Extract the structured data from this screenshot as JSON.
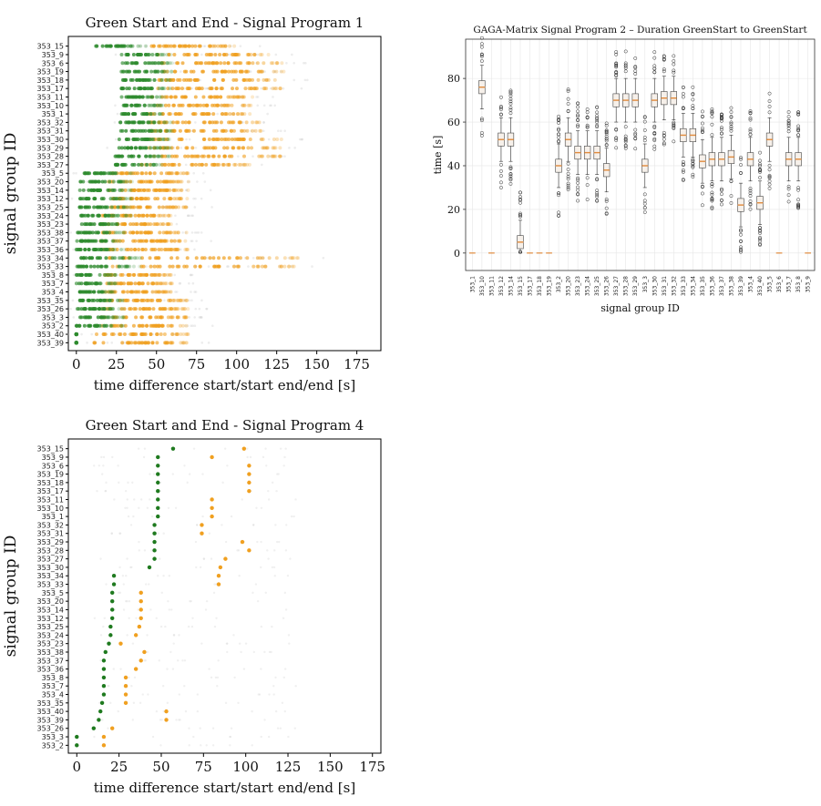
{
  "chart_data": [
    {
      "type": "scatter",
      "title": "Green Start and End - Signal Program 1",
      "xlabel": "time difference start/start end/end [s]",
      "ylabel": "signal group ID",
      "xlim": [
        -5,
        190
      ],
      "xticks": [
        0,
        25,
        50,
        75,
        100,
        125,
        150,
        175
      ],
      "colors": {
        "start": "#2e8b2e",
        "end": "#f0a020"
      },
      "rows": [
        {
          "id": "353_15",
          "start": [
            12,
            45
          ],
          "end": [
            40,
            100
          ]
        },
        {
          "id": "353_9",
          "start": [
            28,
            60
          ],
          "end": [
            50,
            120
          ]
        },
        {
          "id": "353_6",
          "start": [
            28,
            60
          ],
          "end": [
            50,
            130
          ]
        },
        {
          "id": "353_19",
          "start": [
            28,
            60
          ],
          "end": [
            50,
            130
          ]
        },
        {
          "id": "353_18",
          "start": [
            28,
            60
          ],
          "end": [
            50,
            130
          ]
        },
        {
          "id": "353_17",
          "start": [
            28,
            60
          ],
          "end": [
            50,
            130
          ]
        },
        {
          "id": "353_11",
          "start": [
            28,
            55
          ],
          "end": [
            45,
            110
          ]
        },
        {
          "id": "353_10",
          "start": [
            28,
            55
          ],
          "end": [
            45,
            110
          ]
        },
        {
          "id": "353_1",
          "start": [
            28,
            55
          ],
          "end": [
            45,
            110
          ]
        },
        {
          "id": "353_32",
          "start": [
            26,
            60
          ],
          "end": [
            45,
            120
          ]
        },
        {
          "id": "353_31",
          "start": [
            26,
            60
          ],
          "end": [
            45,
            120
          ]
        },
        {
          "id": "353_30",
          "start": [
            24,
            60
          ],
          "end": [
            45,
            130
          ]
        },
        {
          "id": "353_29",
          "start": [
            24,
            60
          ],
          "end": [
            45,
            130
          ]
        },
        {
          "id": "353_28",
          "start": [
            24,
            60
          ],
          "end": [
            45,
            130
          ]
        },
        {
          "id": "353_27",
          "start": [
            24,
            55
          ],
          "end": [
            40,
            110
          ]
        },
        {
          "id": "353_5",
          "start": [
            2,
            35
          ],
          "end": [
            20,
            70
          ]
        },
        {
          "id": "353_20",
          "start": [
            2,
            35
          ],
          "end": [
            20,
            70
          ]
        },
        {
          "id": "353_14",
          "start": [
            2,
            35
          ],
          "end": [
            20,
            70
          ]
        },
        {
          "id": "353_12",
          "start": [
            2,
            35
          ],
          "end": [
            20,
            70
          ]
        },
        {
          "id": "353_25",
          "start": [
            2,
            35
          ],
          "end": [
            20,
            70
          ]
        },
        {
          "id": "353_24",
          "start": [
            2,
            35
          ],
          "end": [
            15,
            60
          ]
        },
        {
          "id": "353_23",
          "start": [
            2,
            30
          ],
          "end": [
            15,
            60
          ]
        },
        {
          "id": "353_38",
          "start": [
            0,
            30
          ],
          "end": [
            15,
            70
          ]
        },
        {
          "id": "353_37",
          "start": [
            0,
            30
          ],
          "end": [
            15,
            70
          ]
        },
        {
          "id": "353_36",
          "start": [
            0,
            30
          ],
          "end": [
            15,
            70
          ]
        },
        {
          "id": "353_34",
          "start": [
            0,
            40
          ],
          "end": [
            20,
            140
          ]
        },
        {
          "id": "353_33",
          "start": [
            0,
            40
          ],
          "end": [
            20,
            140
          ]
        },
        {
          "id": "353_8",
          "start": [
            0,
            25
          ],
          "end": [
            15,
            60
          ]
        },
        {
          "id": "353_7",
          "start": [
            0,
            25
          ],
          "end": [
            15,
            60
          ]
        },
        {
          "id": "353_4",
          "start": [
            0,
            25
          ],
          "end": [
            15,
            60
          ]
        },
        {
          "id": "353_35",
          "start": [
            0,
            30
          ],
          "end": [
            15,
            70
          ]
        },
        {
          "id": "353_26",
          "start": [
            0,
            30
          ],
          "end": [
            15,
            70
          ]
        },
        {
          "id": "353_3",
          "start": [
            0,
            30
          ],
          "end": [
            15,
            70
          ]
        },
        {
          "id": "353_2",
          "start": [
            0,
            30
          ],
          "end": [
            15,
            70
          ]
        },
        {
          "id": "353_40",
          "start": [
            0,
            0
          ],
          "end": [
            10,
            70
          ]
        },
        {
          "id": "353_39",
          "start": [
            0,
            0
          ],
          "end": [
            10,
            70
          ]
        }
      ]
    },
    {
      "type": "box",
      "title": "GAGA-Matrix Signal Program 2 – Duration GreenStart to GreenStart",
      "xlabel": "signal group ID",
      "ylabel": "time [s]",
      "ylim": [
        -8,
        98
      ],
      "yticks": [
        0,
        20,
        40,
        60,
        80
      ],
      "box_color": "#e08a3c",
      "categories": [
        "353_1",
        "353_10",
        "353_11",
        "353_12",
        "353_14",
        "353_15",
        "353_17",
        "353_18",
        "353_19",
        "353_2",
        "353_20",
        "353_23",
        "353_24",
        "353_25",
        "353_26",
        "353_27",
        "353_28",
        "353_29",
        "353_3",
        "353_30",
        "353_31",
        "353_32",
        "353_33",
        "353_34",
        "353_35",
        "353_36",
        "353_37",
        "353_38",
        "353_39",
        "353_4",
        "353_40",
        "353_5",
        "353_6",
        "353_7",
        "353_8",
        "353_9"
      ],
      "medians": [
        0,
        76,
        0,
        52,
        52,
        5,
        0,
        0,
        0,
        40,
        52,
        46,
        46,
        46,
        38,
        70,
        70,
        70,
        40,
        70,
        71,
        71,
        54,
        54,
        42,
        43,
        43,
        44,
        22,
        43,
        23,
        52,
        0,
        43,
        43,
        0
      ]
    },
    {
      "type": "scatter",
      "title": "Green Start and End - Signal Program 4",
      "xlabel": "time difference start/start end/end [s]",
      "ylabel": "signal group ID",
      "xlim": [
        -5,
        180
      ],
      "xticks": [
        0,
        25,
        50,
        75,
        100,
        125,
        150,
        175
      ],
      "colors": {
        "start": "#1f7a1f",
        "end": "#f0a020"
      },
      "rows": [
        {
          "id": "353_15",
          "start": 57,
          "end": 99
        },
        {
          "id": "353_9",
          "start": 48,
          "end": 80
        },
        {
          "id": "353_6",
          "start": 48,
          "end": 102
        },
        {
          "id": "353_19",
          "start": 48,
          "end": 102
        },
        {
          "id": "353_18",
          "start": 48,
          "end": 102
        },
        {
          "id": "353_17",
          "start": 48,
          "end": 102
        },
        {
          "id": "353_11",
          "start": 48,
          "end": 80
        },
        {
          "id": "353_10",
          "start": 48,
          "end": 80
        },
        {
          "id": "353_1",
          "start": 48,
          "end": 80
        },
        {
          "id": "353_32",
          "start": 46,
          "end": 74
        },
        {
          "id": "353_31",
          "start": 46,
          "end": 74
        },
        {
          "id": "353_29",
          "start": 46,
          "end": 98
        },
        {
          "id": "353_28",
          "start": 46,
          "end": 102
        },
        {
          "id": "353_27",
          "start": 46,
          "end": 88
        },
        {
          "id": "353_30",
          "start": 43,
          "end": 85
        },
        {
          "id": "353_34",
          "start": 22,
          "end": 84
        },
        {
          "id": "353_33",
          "start": 22,
          "end": 84
        },
        {
          "id": "353_5",
          "start": 21,
          "end": 38
        },
        {
          "id": "353_20",
          "start": 21,
          "end": 38
        },
        {
          "id": "353_14",
          "start": 21,
          "end": 38
        },
        {
          "id": "353_12",
          "start": 21,
          "end": 38
        },
        {
          "id": "353_25",
          "start": 20,
          "end": 37
        },
        {
          "id": "353_24",
          "start": 20,
          "end": 35
        },
        {
          "id": "353_23",
          "start": 19,
          "end": 26
        },
        {
          "id": "353_38",
          "start": 17,
          "end": 40
        },
        {
          "id": "353_37",
          "start": 16,
          "end": 38
        },
        {
          "id": "353_36",
          "start": 16,
          "end": 35
        },
        {
          "id": "353_8",
          "start": 16,
          "end": 29
        },
        {
          "id": "353_7",
          "start": 16,
          "end": 29
        },
        {
          "id": "353_4",
          "start": 16,
          "end": 29
        },
        {
          "id": "353_35",
          "start": 15,
          "end": 29
        },
        {
          "id": "353_40",
          "start": 14,
          "end": 53
        },
        {
          "id": "353_39",
          "start": 13,
          "end": 53
        },
        {
          "id": "353_26",
          "start": 10,
          "end": 21
        },
        {
          "id": "353_3",
          "start": 0,
          "end": 16
        },
        {
          "id": "353_2",
          "start": 0,
          "end": 16
        }
      ]
    }
  ]
}
